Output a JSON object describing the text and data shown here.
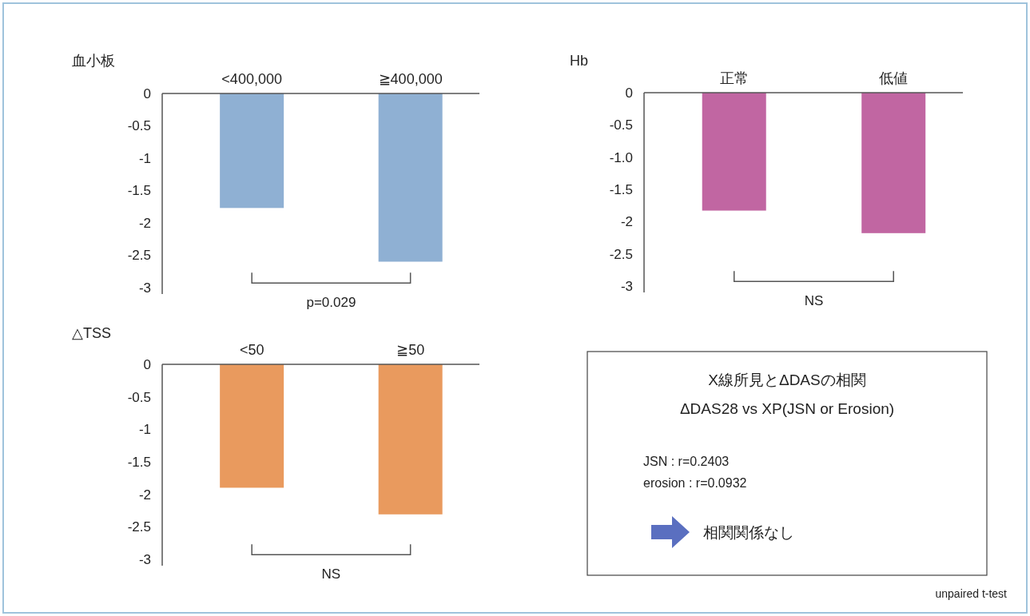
{
  "chart_data": [
    {
      "type": "bar",
      "title": "血小板",
      "categories": [
        "<400,000",
        "≧400,000"
      ],
      "values": [
        -1.77,
        -2.6
      ],
      "color": "#8fb0d3",
      "ylim": [
        -3.1,
        0
      ],
      "yticks": [
        0,
        -0.5,
        -1,
        -1.5,
        -2,
        -2.5,
        -3
      ],
      "annotations": [
        "p=0.029"
      ]
    },
    {
      "type": "bar",
      "title": "Hb",
      "categories": [
        "正常",
        "低値"
      ],
      "values": [
        -1.83,
        -2.18
      ],
      "color": "#c166a2",
      "ylim": [
        -3.1,
        0
      ],
      "yticks": [
        0,
        -0.5,
        {
          "value": -1,
          "label": "-1.0"
        },
        -1.5,
        -2,
        -2.5,
        -3
      ],
      "annotations": [
        "NS"
      ]
    },
    {
      "type": "bar",
      "title": "△TSS",
      "categories": [
        "<50",
        "≧50"
      ],
      "values": [
        -1.9,
        -2.31
      ],
      "color": "#e99a5e",
      "ylim": [
        -3.1,
        0
      ],
      "yticks": [
        0,
        -0.5,
        -1,
        -1.5,
        -2,
        -2.5,
        -3
      ],
      "annotations": [
        "NS"
      ]
    },
    {
      "type": "other",
      "title": "X線所見とΔDASの相関",
      "subtitle": "ΔDAS28 vs XP(JSN or Erosion)",
      "annotations": [
        "JSN : r=0.2403",
        "erosion : r=0.0932",
        "相関関係なし",
        "unpaired t-test"
      ]
    }
  ]
}
